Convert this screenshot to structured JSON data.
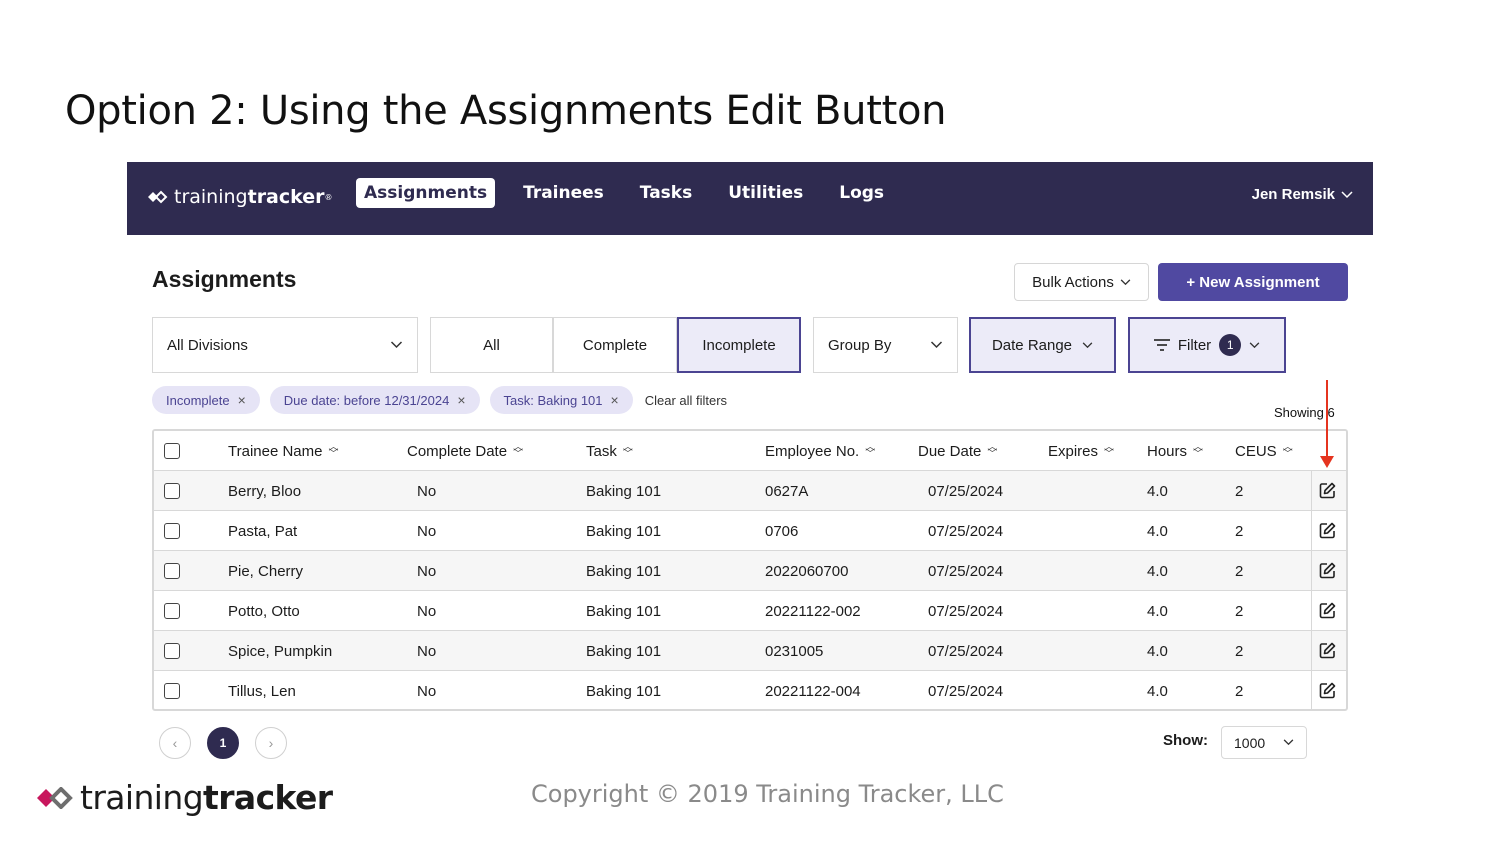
{
  "slide_title": "Option 2: Using the Assignments Edit Button",
  "nav": {
    "logo_light": "training",
    "logo_bold": "tracker",
    "logo_mark": "®",
    "tabs": [
      "Assignments",
      "Trainees",
      "Tasks",
      "Utilities",
      "Logs"
    ],
    "active_tab": "Assignments",
    "user": "Jen Remsik"
  },
  "page": {
    "title": "Assignments",
    "bulk_actions": "Bulk Actions",
    "new_assignment": "+ New Assignment"
  },
  "controls": {
    "division": "All Divisions",
    "status_tabs": [
      "All",
      "Complete",
      "Incomplete"
    ],
    "active_status": "Incomplete",
    "group_by": "Group By",
    "date_range": "Date Range",
    "filter": "Filter",
    "filter_count": "1"
  },
  "chips": [
    "Incomplete",
    "Due date: before 12/31/2024",
    "Task: Baking 101"
  ],
  "clear_all": "Clear all filters",
  "showing": "Showing 6",
  "table": {
    "columns": [
      "Trainee Name",
      "Complete Date",
      "Task",
      "Employee No.",
      "Due Date",
      "Expires",
      "Hours",
      "CEUS"
    ],
    "rows": [
      {
        "name": "Berry, Bloo",
        "complete": "No",
        "task": "Baking 101",
        "emp": "0627A",
        "due": "07/25/2024",
        "expires": "",
        "hours": "4.0",
        "ceus": "2"
      },
      {
        "name": "Pasta, Pat",
        "complete": "No",
        "task": "Baking 101",
        "emp": "0706",
        "due": "07/25/2024",
        "expires": "",
        "hours": "4.0",
        "ceus": "2"
      },
      {
        "name": "Pie, Cherry",
        "complete": "No",
        "task": "Baking 101",
        "emp": "2022060700",
        "due": "07/25/2024",
        "expires": "",
        "hours": "4.0",
        "ceus": "2"
      },
      {
        "name": "Potto, Otto",
        "complete": "No",
        "task": "Baking 101",
        "emp": "20221122-002",
        "due": "07/25/2024",
        "expires": "",
        "hours": "4.0",
        "ceus": "2"
      },
      {
        "name": "Spice, Pumpkin",
        "complete": "No",
        "task": "Baking 101",
        "emp": "0231005",
        "due": "07/25/2024",
        "expires": "",
        "hours": "4.0",
        "ceus": "2"
      },
      {
        "name": "Tillus, Len",
        "complete": "No",
        "task": "Baking 101",
        "emp": "20221122-004",
        "due": "07/25/2024",
        "expires": "",
        "hours": "4.0",
        "ceus": "2"
      }
    ]
  },
  "pagination": {
    "prev": "‹",
    "current": "1",
    "next": "›"
  },
  "show": {
    "label": "Show:",
    "value": "1000"
  },
  "footer": {
    "logo_light": "training",
    "logo_bold": "tracker",
    "copyright": "Copyright © 2019 Training Tracker, LLC"
  },
  "colors": {
    "nav_bg": "#2f2b50",
    "accent": "#5049a1",
    "chip_bg": "#e6e4f6",
    "arrow": "#e5341f",
    "logo_pink": "#c8175d"
  }
}
